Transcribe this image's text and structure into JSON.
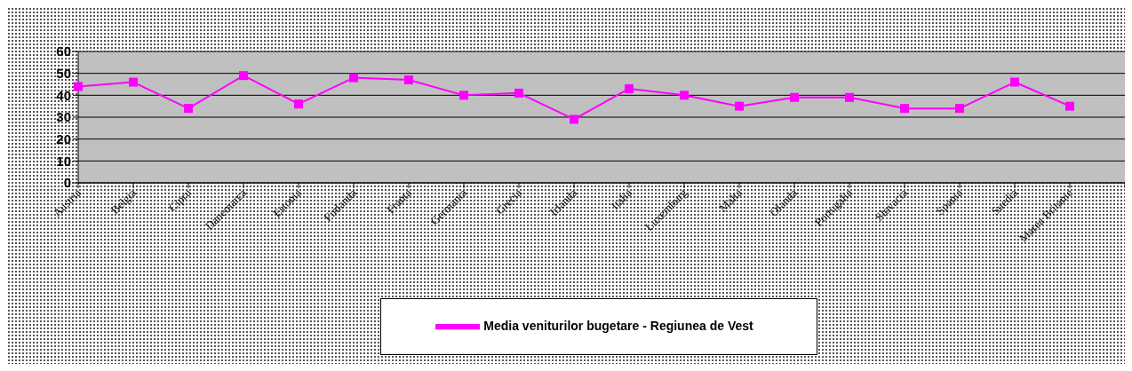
{
  "chart_data": {
    "type": "line",
    "categories": [
      "Austria",
      "Belgia",
      "Cipru",
      "Danemarca",
      "Estonia",
      "Finlanda",
      "Franta",
      "Germania",
      "Grecia",
      "Irlanda",
      "Italia",
      "Luxemburg",
      "Malta",
      "Olanda",
      "Portugalia",
      "Slovacia",
      "Spania",
      "Suedia",
      "Marea Britanie",
      null
    ],
    "series": [
      {
        "name": "Media veniturilor bugetare - Regiunea de Vest",
        "color": "#ff00ff",
        "values": [
          44,
          46,
          34,
          49,
          36,
          48,
          47,
          40,
          41,
          29,
          43,
          40,
          35,
          39,
          39,
          34,
          34,
          46,
          35,
          null
        ]
      }
    ],
    "ylim": [
      0,
      60
    ],
    "yticks": [
      0,
      10,
      20,
      30,
      40,
      50,
      60
    ],
    "grid": "y",
    "legend": "bottom",
    "marker": "square",
    "line_style": "solid"
  }
}
